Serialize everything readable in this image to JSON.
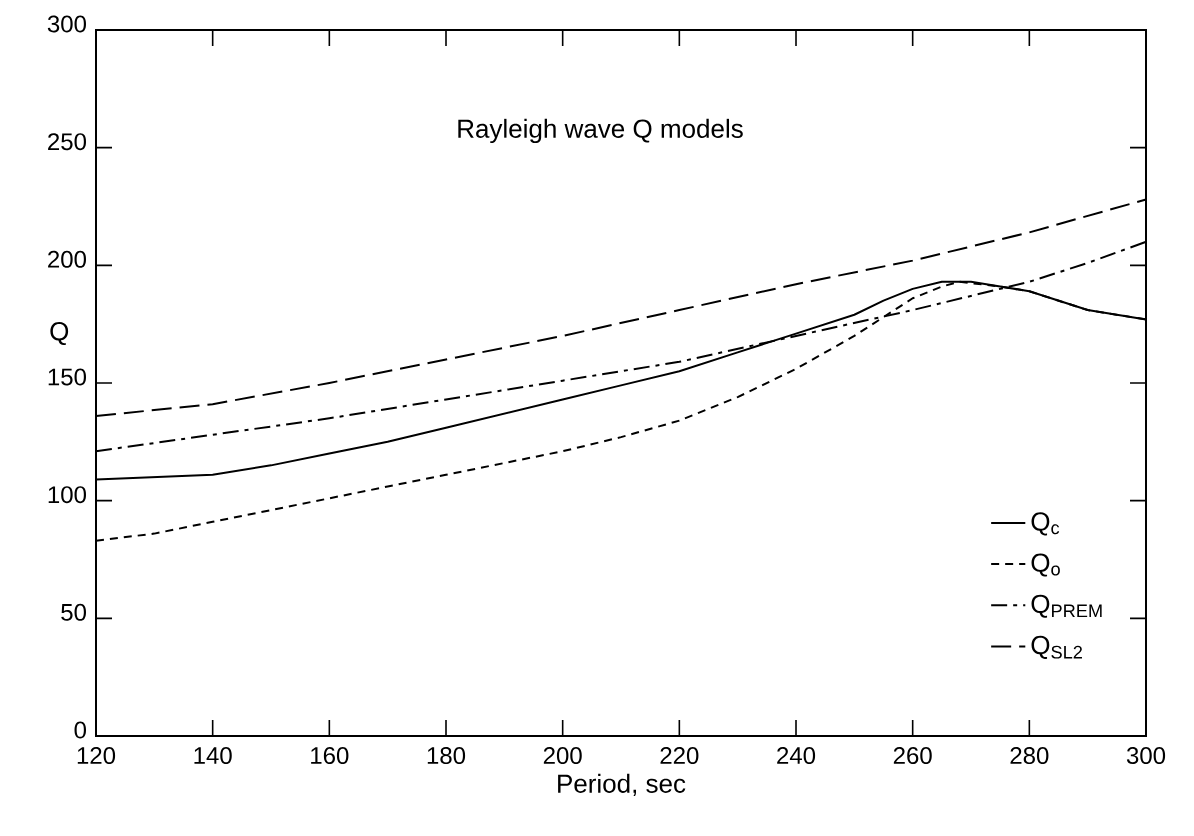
{
  "chart_data": {
    "type": "line",
    "title": "Rayleigh wave Q models",
    "xlabel": "Period, sec",
    "ylabel": "Q",
    "xlim": [
      120,
      300
    ],
    "ylim": [
      0,
      300
    ],
    "xticks": [
      120,
      140,
      160,
      180,
      200,
      220,
      240,
      260,
      280,
      300
    ],
    "yticks": [
      0,
      50,
      100,
      150,
      200,
      250,
      300
    ],
    "legend": "bottom right",
    "grid": false,
    "marker": "none",
    "series": [
      {
        "name": "Q$_{c}$",
        "color": "#000000",
        "line_style": "solid",
        "x": [
          120,
          130,
          140,
          150,
          160,
          170,
          180,
          190,
          200,
          210,
          220,
          230,
          240,
          250,
          255,
          260,
          265,
          270,
          275,
          280,
          290,
          300
        ],
        "values": [
          109,
          110,
          111,
          115,
          120,
          125,
          131,
          137,
          143,
          149,
          155,
          163,
          171,
          179,
          185,
          190,
          193,
          193,
          191,
          189,
          181,
          177
        ]
      },
      {
        "name": "Q$_{o}$",
        "color": "#000000",
        "line_style": "dashed",
        "x": [
          120,
          130,
          140,
          150,
          160,
          170,
          180,
          190,
          200,
          210,
          220,
          230,
          240,
          250,
          255,
          260,
          265,
          268,
          275,
          280,
          290,
          300
        ],
        "values": [
          83,
          86,
          91,
          96,
          101,
          106,
          111,
          116,
          121,
          127,
          134,
          144,
          156,
          170,
          178,
          186,
          191,
          193,
          191,
          189,
          181,
          177
        ]
      },
      {
        "name": "Q$_{PREM}$",
        "color": "#000000",
        "line_style": "dashdot",
        "x": [
          120,
          140,
          160,
          180,
          200,
          220,
          240,
          260,
          270,
          280,
          290,
          300
        ],
        "values": [
          121,
          128,
          135,
          143,
          151,
          159,
          170,
          181,
          187,
          193,
          201,
          210
        ]
      },
      {
        "name": "Q$_{SL2}$",
        "color": "#000000",
        "line_style": "longdashed",
        "x": [
          120,
          140,
          160,
          180,
          200,
          220,
          240,
          260,
          280,
          300
        ],
        "values": [
          136,
          141,
          150,
          160,
          170,
          181,
          192,
          202,
          214,
          228
        ]
      }
    ]
  }
}
